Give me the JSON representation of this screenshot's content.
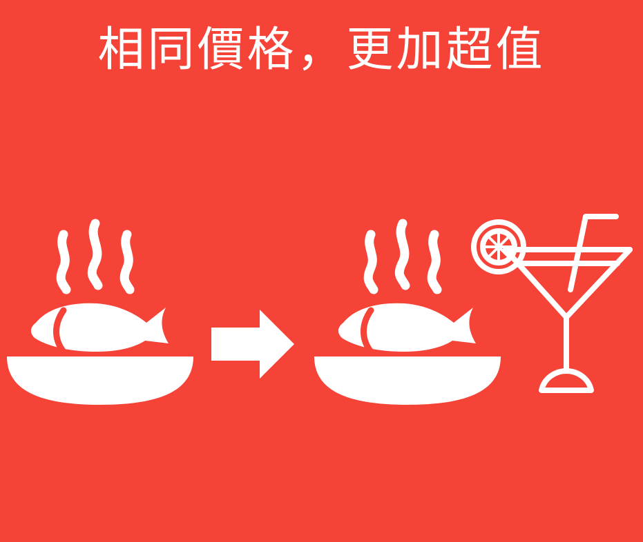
{
  "headline": "相同價格，更加超值",
  "colors": {
    "background": "#f54338",
    "foreground": "#ffffff"
  },
  "icons": {
    "left_dish": "hot-fish-dish-icon",
    "arrow": "right-arrow-icon",
    "right_dish": "hot-fish-dish-icon",
    "drink": "cocktail-glass-icon"
  }
}
